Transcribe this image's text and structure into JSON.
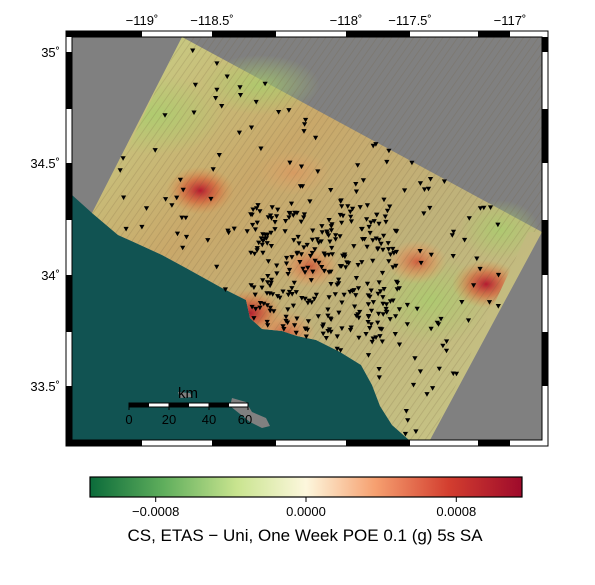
{
  "map": {
    "lon_ticks": [
      "−119˚",
      "−118.5˚",
      "−118˚",
      "−117.5˚",
      "−117˚"
    ],
    "lat_ticks": [
      "35˚",
      "34.5˚",
      "34˚",
      "33.5˚"
    ],
    "scale_bar": {
      "unit": "km",
      "labels": [
        "0",
        "20",
        "40",
        "60"
      ]
    },
    "colors": {
      "ocean": "#115352",
      "no_data": "#808080",
      "marker": "#000000"
    },
    "hotspots": [
      {
        "lon": -118.72,
        "lat": 34.42,
        "intensity": "high"
      },
      {
        "lon": -118.42,
        "lat": 33.87,
        "intensity": "high"
      },
      {
        "lon": -118.05,
        "lat": 34.08,
        "intensity": "medium"
      },
      {
        "lon": -117.4,
        "lat": 34.1,
        "intensity": "medium"
      },
      {
        "lon": -116.98,
        "lat": 34.0,
        "intensity": "high"
      },
      {
        "lon": -118.2,
        "lat": 33.78,
        "intensity": "medium"
      },
      {
        "lon": -118.15,
        "lat": 34.5,
        "intensity": "low"
      }
    ]
  },
  "colorbar": {
    "tick_labels": [
      "−0.0008",
      "0.0000",
      "0.0008"
    ],
    "tick_values": [
      -0.0008,
      0.0,
      0.0008
    ],
    "range": [
      -0.00115,
      0.00115
    ],
    "colors": [
      "#0b6b3a",
      "#5fae5c",
      "#c9e48f",
      "#fdf7dd",
      "#f6a070",
      "#d33e2f",
      "#9e0a2b"
    ],
    "title": "CS, ETAS − Uni, One Week POE 0.1 (g) 5s SA"
  }
}
